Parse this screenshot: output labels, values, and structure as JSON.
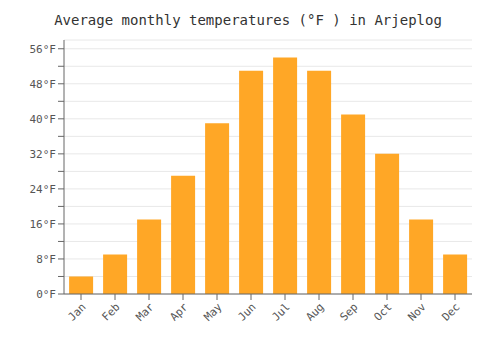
{
  "chart_data": {
    "type": "bar",
    "title": "Average monthly temperatures (°F ) in Arjeplog",
    "categories": [
      "Jan",
      "Feb",
      "Mar",
      "Apr",
      "May",
      "Jun",
      "Jul",
      "Aug",
      "Sep",
      "Oct",
      "Nov",
      "Dec"
    ],
    "values": [
      4,
      9,
      17,
      27,
      39,
      51,
      54,
      51,
      41,
      32,
      17,
      9
    ],
    "color": "#FFA726",
    "ylim": [
      0,
      58
    ],
    "yticks": [
      {
        "value": 0,
        "label": "0°F"
      },
      {
        "value": 4,
        "label": ""
      },
      {
        "value": 8,
        "label": "8°F"
      },
      {
        "value": 12,
        "label": ""
      },
      {
        "value": 16,
        "label": "16°F"
      },
      {
        "value": 20,
        "label": ""
      },
      {
        "value": 24,
        "label": "24°F"
      },
      {
        "value": 28,
        "label": ""
      },
      {
        "value": 32,
        "label": "32°F"
      },
      {
        "value": 36,
        "label": ""
      },
      {
        "value": 40,
        "label": "40°F"
      },
      {
        "value": 44,
        "label": ""
      },
      {
        "value": 48,
        "label": "48°F"
      },
      {
        "value": 52,
        "label": ""
      },
      {
        "value": 56,
        "label": "56°F"
      }
    ],
    "grid": true
  }
}
